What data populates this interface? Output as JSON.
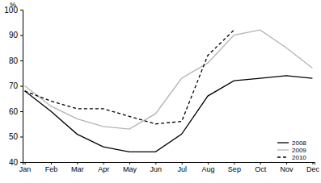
{
  "chart_data": {
    "type": "line",
    "y_label": "%",
    "categories": [
      "Jan",
      "Feb",
      "Mar",
      "Apr",
      "May",
      "Jun",
      "Jul",
      "Aug",
      "Sep",
      "Oct",
      "Nov",
      "Dec"
    ],
    "series": [
      {
        "name": "2008",
        "color": "#000000",
        "line_style": "solid",
        "values": [
          68,
          60,
          51,
          46,
          44,
          44,
          51,
          66,
          72,
          73,
          74,
          73
        ]
      },
      {
        "name": "2009",
        "color": "#b3b3b3",
        "line_style": "solid",
        "values": [
          70,
          62,
          57,
          54,
          53,
          59,
          73,
          79,
          90,
          92,
          85,
          77
        ]
      },
      {
        "name": "2010",
        "color": "#000000",
        "line_style": "dashed",
        "values": [
          68,
          64,
          61,
          61,
          58,
          55,
          56,
          82,
          92,
          null,
          null,
          null
        ]
      }
    ],
    "ylim": [
      40,
      100
    ],
    "yticks": [
      40,
      50,
      60,
      70,
      80,
      90,
      100
    ],
    "grid": false,
    "legend": "bottom-right"
  }
}
